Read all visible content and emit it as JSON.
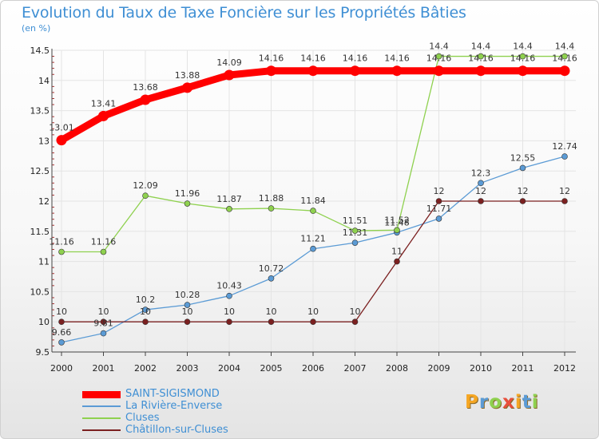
{
  "chart_data": {
    "type": "line",
    "title": "Evolution du Taux de Taxe Foncière sur les Propriétés Bâties",
    "subtitle": "(en %)",
    "xlabel": "",
    "ylabel": "",
    "ylim": [
      9.5,
      14.5
    ],
    "yticks": [
      "9.5",
      "10",
      "10.5",
      "11",
      "11.5",
      "12",
      "12.5",
      "13",
      "13.5",
      "14",
      "14.5"
    ],
    "x": [
      "2000",
      "2001",
      "2002",
      "2003",
      "2004",
      "2005",
      "2006",
      "2007",
      "2008",
      "2009",
      "2010",
      "2011",
      "2012"
    ],
    "series": [
      {
        "name": "SAINT-SIGISMOND",
        "color": "#ff0000",
        "values": [
          13.01,
          13.41,
          13.68,
          13.88,
          14.09,
          14.16,
          14.16,
          14.16,
          14.16,
          14.16,
          14.16,
          14.16,
          14.16
        ],
        "labels": [
          "13.01",
          "13.41",
          "13.68",
          "13.88",
          "14.09",
          "14.16",
          "14.16",
          "14.16",
          "14.16",
          "14.16",
          "14.16",
          "14.16",
          "14.16"
        ]
      },
      {
        "name": "La Rivière-Enverse",
        "color": "#5b9bd5",
        "values": [
          9.66,
          9.81,
          10.2,
          10.28,
          10.43,
          10.72,
          11.21,
          11.31,
          11.48,
          11.71,
          12.3,
          12.55,
          12.74
        ],
        "labels": [
          "9.66",
          "9.81",
          "10.2",
          "10.28",
          "10.43",
          "10.72",
          "11.21",
          "11.31",
          "11.48",
          "11.71",
          "12.3",
          "12.55",
          "12.74"
        ]
      },
      {
        "name": "Cluses",
        "color": "#8fd14f",
        "values": [
          11.16,
          11.16,
          12.09,
          11.96,
          11.87,
          11.88,
          11.84,
          11.51,
          11.52,
          14.4,
          14.4,
          14.4,
          14.4
        ],
        "labels": [
          "11.16",
          "11.16",
          "12.09",
          "11.96",
          "11.87",
          "11.88",
          "11.84",
          "11.51",
          "11.52",
          "14.4",
          "14.4",
          "14.4",
          "14.4"
        ]
      },
      {
        "name": "Châtillon-sur-Cluses",
        "color": "#7b2020",
        "values": [
          10,
          10,
          10,
          10,
          10,
          10,
          10,
          10,
          11,
          12,
          12,
          12,
          12
        ],
        "labels": [
          "10",
          "10",
          "10",
          "10",
          "10",
          "10",
          "10",
          "10",
          "11",
          "12",
          "12",
          "12",
          "12"
        ]
      }
    ],
    "legend_position": "bottom-left"
  },
  "brand": {
    "logo_text": "Proxiti",
    "logo_letters": [
      "P",
      "r",
      "o",
      "x",
      "i",
      "t",
      "i"
    ],
    "logo_colors": [
      "#f5a623",
      "#5b9bd5",
      "#8fd14f",
      "#e94e3c",
      "#f5a623",
      "#5b9bd5",
      "#8fd14f"
    ]
  },
  "colors": {
    "title": "#3f8fd4",
    "grid": "#e4e4e4",
    "axis": "#444444"
  }
}
